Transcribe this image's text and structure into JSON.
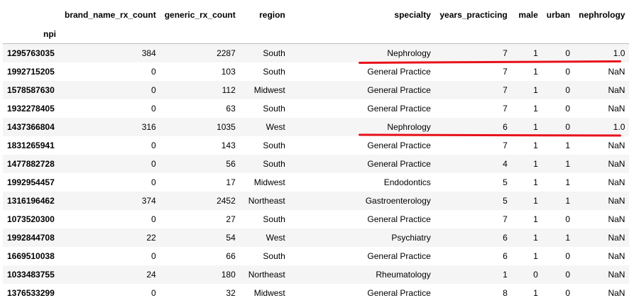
{
  "table": {
    "columns": [
      "",
      "brand_name_rx_count",
      "generic_rx_count",
      "region",
      "specialty",
      "years_practicing",
      "male",
      "urban",
      "nephrology"
    ],
    "index_name": "npi",
    "rows": [
      [
        "1295763035",
        "384",
        "2287",
        "South",
        "Nephrology",
        "7",
        "1",
        "0",
        "1.0"
      ],
      [
        "1992715205",
        "0",
        "103",
        "South",
        "General Practice",
        "7",
        "1",
        "0",
        "NaN"
      ],
      [
        "1578587630",
        "0",
        "112",
        "Midwest",
        "General Practice",
        "7",
        "1",
        "0",
        "NaN"
      ],
      [
        "1932278405",
        "0",
        "63",
        "South",
        "General Practice",
        "7",
        "1",
        "0",
        "NaN"
      ],
      [
        "1437366804",
        "316",
        "1035",
        "West",
        "Nephrology",
        "6",
        "1",
        "0",
        "1.0"
      ],
      [
        "1831265941",
        "0",
        "143",
        "South",
        "General Practice",
        "7",
        "1",
        "1",
        "NaN"
      ],
      [
        "1477882728",
        "0",
        "56",
        "South",
        "General Practice",
        "4",
        "1",
        "1",
        "NaN"
      ],
      [
        "1992954457",
        "0",
        "17",
        "Midwest",
        "Endodontics",
        "5",
        "1",
        "1",
        "NaN"
      ],
      [
        "1316196462",
        "374",
        "2452",
        "Northeast",
        "Gastroenterology",
        "5",
        "1",
        "1",
        "NaN"
      ],
      [
        "1073520300",
        "0",
        "27",
        "South",
        "General Practice",
        "7",
        "1",
        "0",
        "NaN"
      ],
      [
        "1992844708",
        "22",
        "54",
        "West",
        "Psychiatry",
        "6",
        "1",
        "1",
        "NaN"
      ],
      [
        "1669510038",
        "0",
        "66",
        "South",
        "General Practice",
        "6",
        "1",
        "0",
        "NaN"
      ],
      [
        "1033483755",
        "24",
        "180",
        "Northeast",
        "Rheumatology",
        "1",
        "0",
        "0",
        "NaN"
      ],
      [
        "1376533299",
        "0",
        "32",
        "Midwest",
        "General Practice",
        "8",
        "1",
        "0",
        "NaN"
      ]
    ]
  },
  "annotations": {
    "highlight_color": "#e8121c",
    "underlined_rows": [
      0,
      4
    ]
  }
}
